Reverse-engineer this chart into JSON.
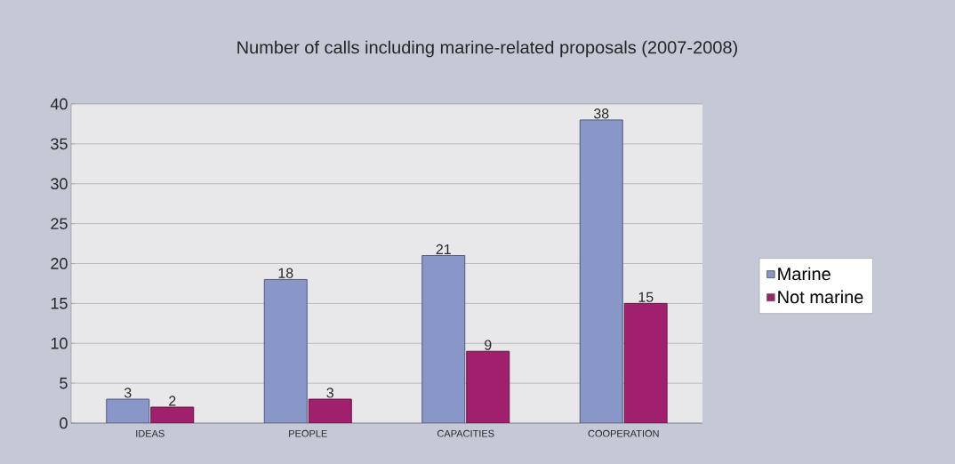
{
  "chart_data": {
    "type": "bar",
    "title": "Number of calls including marine-related proposals (2007-2008)",
    "categories": [
      "IDEAS",
      "PEOPLE",
      "CAPACITIES",
      "COOPERATION"
    ],
    "series": [
      {
        "name": "Marine",
        "color": "#8896c8",
        "values": [
          3,
          18,
          21,
          38
        ]
      },
      {
        "name": "Not marine",
        "color": "#a0206e",
        "values": [
          2,
          3,
          9,
          15
        ]
      }
    ],
    "ylim": [
      0,
      40
    ],
    "yticks": [
      0,
      5,
      10,
      15,
      20,
      25,
      30,
      35,
      40
    ],
    "grid": "y",
    "legend": "right",
    "data_labels": true
  }
}
